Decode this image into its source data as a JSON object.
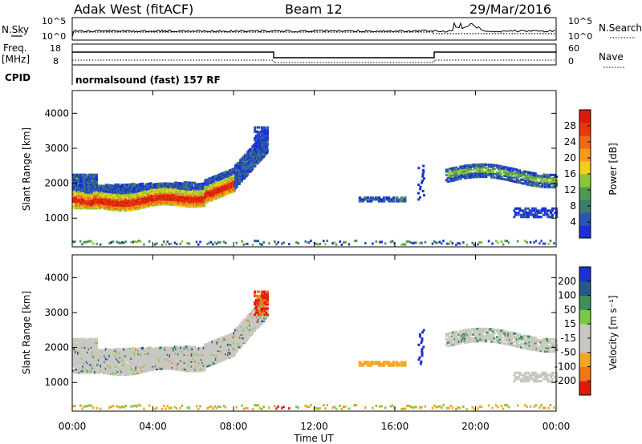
{
  "header": {
    "station": "Adak West (fitACF)",
    "beam": "Beam 12",
    "date": "29/Mar/2016"
  },
  "top_panels": {
    "nsky_label": "N.Sky",
    "nsearch_label": "N.Search",
    "noise_ticks_left": [
      "10^5",
      "10^0"
    ],
    "noise_ticks_right": [
      "10^5",
      "10^0"
    ],
    "freq_label_1": "Freq.",
    "freq_label_2": "[MHz]",
    "freq_ticks": [
      "18",
      "8"
    ],
    "nave_label": "Nave",
    "nave_ticks": [
      "60",
      "0"
    ],
    "cpid_label": "CPID",
    "cpid_text": "normalsound (fast) 157 RF"
  },
  "colors": {
    "power_scale": [
      "#1a2fd6",
      "#2a55b5",
      "#3d7a6f",
      "#4f9a50",
      "#8ec43a",
      "#f2cf1a",
      "#f59a1e",
      "#f06a12",
      "#e23a0a",
      "#d81c0c"
    ],
    "velocity_scale": [
      "#e01a0a",
      "#f07814",
      "#f5a623",
      "#c8c8c0",
      "#c8c8c0",
      "#7ac843",
      "#3f8f5a",
      "#245a8a",
      "#1f2fd0"
    ]
  },
  "chart_data": [
    {
      "type": "heatmap",
      "title": "Power",
      "xlabel": "Time UT",
      "ylabel": "Slant Range [km]",
      "x_ticks": [
        "00:00",
        "04:00",
        "08:00",
        "12:00",
        "16:00",
        "20:00",
        "00:00"
      ],
      "y_ticks": [
        "1000",
        "2000",
        "3000",
        "4000"
      ],
      "y_range": [
        180,
        4650
      ],
      "colorbar_label": "Power [dB]",
      "colorbar_ticks": [
        "4",
        "8",
        "12",
        "16",
        "20",
        "24",
        "28"
      ],
      "colorbar_range": [
        0,
        32
      ]
    },
    {
      "type": "heatmap",
      "title": "Velocity",
      "xlabel": "Time UT",
      "ylabel": "Slant Range [km]",
      "x_ticks": [
        "00:00",
        "04:00",
        "08:00",
        "12:00",
        "16:00",
        "20:00",
        "00:00"
      ],
      "y_ticks": [
        "1000",
        "2000",
        "3000",
        "4000"
      ],
      "y_range": [
        180,
        4650
      ],
      "colorbar_label": "Velocity [m s⁻¹]",
      "colorbar_ticks": [
        "200",
        "100",
        "50",
        "15",
        "-15",
        "-50",
        "-100",
        "-200"
      ]
    }
  ],
  "x_axis": {
    "label": "Time UT",
    "ticks": [
      "00:00",
      "04:00",
      "08:00",
      "12:00",
      "16:00",
      "20:00",
      "00:00"
    ]
  }
}
